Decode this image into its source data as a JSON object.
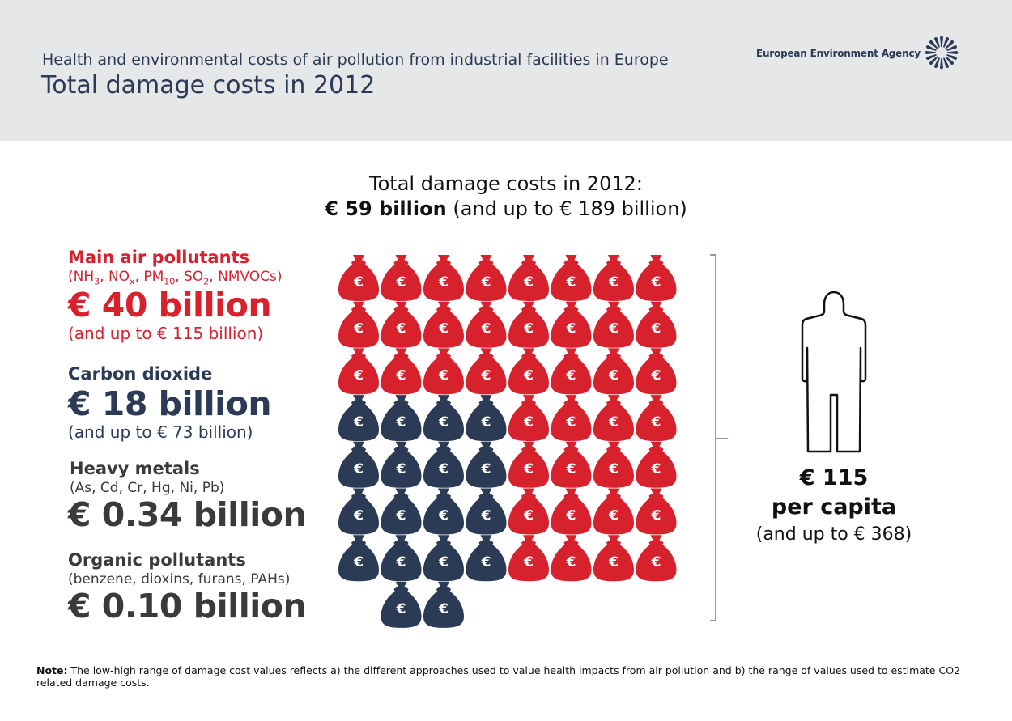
{
  "header": {
    "subtitle": "Health and environmental costs of air pollution from industrial facilities in Europe",
    "title": "Total damage costs in 2012",
    "agency": "European Environment Agency"
  },
  "total": {
    "line1": "Total damage costs in 2012:",
    "value": "€ 59 billion",
    "range": "(and up to € 189 billion)"
  },
  "legend": {
    "main": {
      "head": "Main air pollutants",
      "sub_parts": [
        "(NH",
        "3",
        ", NO",
        "x",
        ", PM",
        "10",
        ", SO",
        "2",
        ", NMVOCs)"
      ],
      "value": "€ 40 billion",
      "range": "(and up to € 115 billion)"
    },
    "co2": {
      "head": "Carbon dioxide",
      "value": "€ 18 billion",
      "range": "(and up to € 73 billion)"
    },
    "metals": {
      "head": "Heavy metals",
      "sub": "(As, Cd, Cr, Hg, Ni, Pb)",
      "value": "€ 0.34 billion"
    },
    "organic": {
      "head": "Organic pollutants",
      "sub": "(benzene, dioxins, furans, PAHs)",
      "value": "€ 0.10 billion"
    }
  },
  "per_capita": {
    "value": "€ 115",
    "label": "per capita",
    "range": "(and up to € 368)"
  },
  "note": {
    "label": "Note:",
    "text": " The low-high range of damage cost values reflects a) the different approaches used to value health impacts from air pollution and b) the range of values used to estimate CO2 related damage costs."
  },
  "colors": {
    "main": "#d7212d",
    "co2": "#2b3a55",
    "metals": "#3a3a3a",
    "header_bg": "#e6e7e9"
  },
  "icons": {
    "bag": "euro-money-bag-icon",
    "person": "person-silhouette-icon",
    "logo": "eea-logo-icon"
  },
  "chart_data": {
    "type": "pictogram",
    "unit": "€ billion per bag",
    "series": [
      {
        "name": "Main air pollutants",
        "value": 40,
        "range_high": 115,
        "color": "#d7212d"
      },
      {
        "name": "Carbon dioxide",
        "value": 18,
        "range_high": 73,
        "color": "#2b3a55"
      },
      {
        "name": "Heavy metals",
        "value": 0.34,
        "color": "#3a3a3a"
      },
      {
        "name": "Organic pollutants",
        "value": 0.1,
        "color": "#3a3a3a"
      }
    ],
    "total": 59,
    "total_high": 189
  }
}
